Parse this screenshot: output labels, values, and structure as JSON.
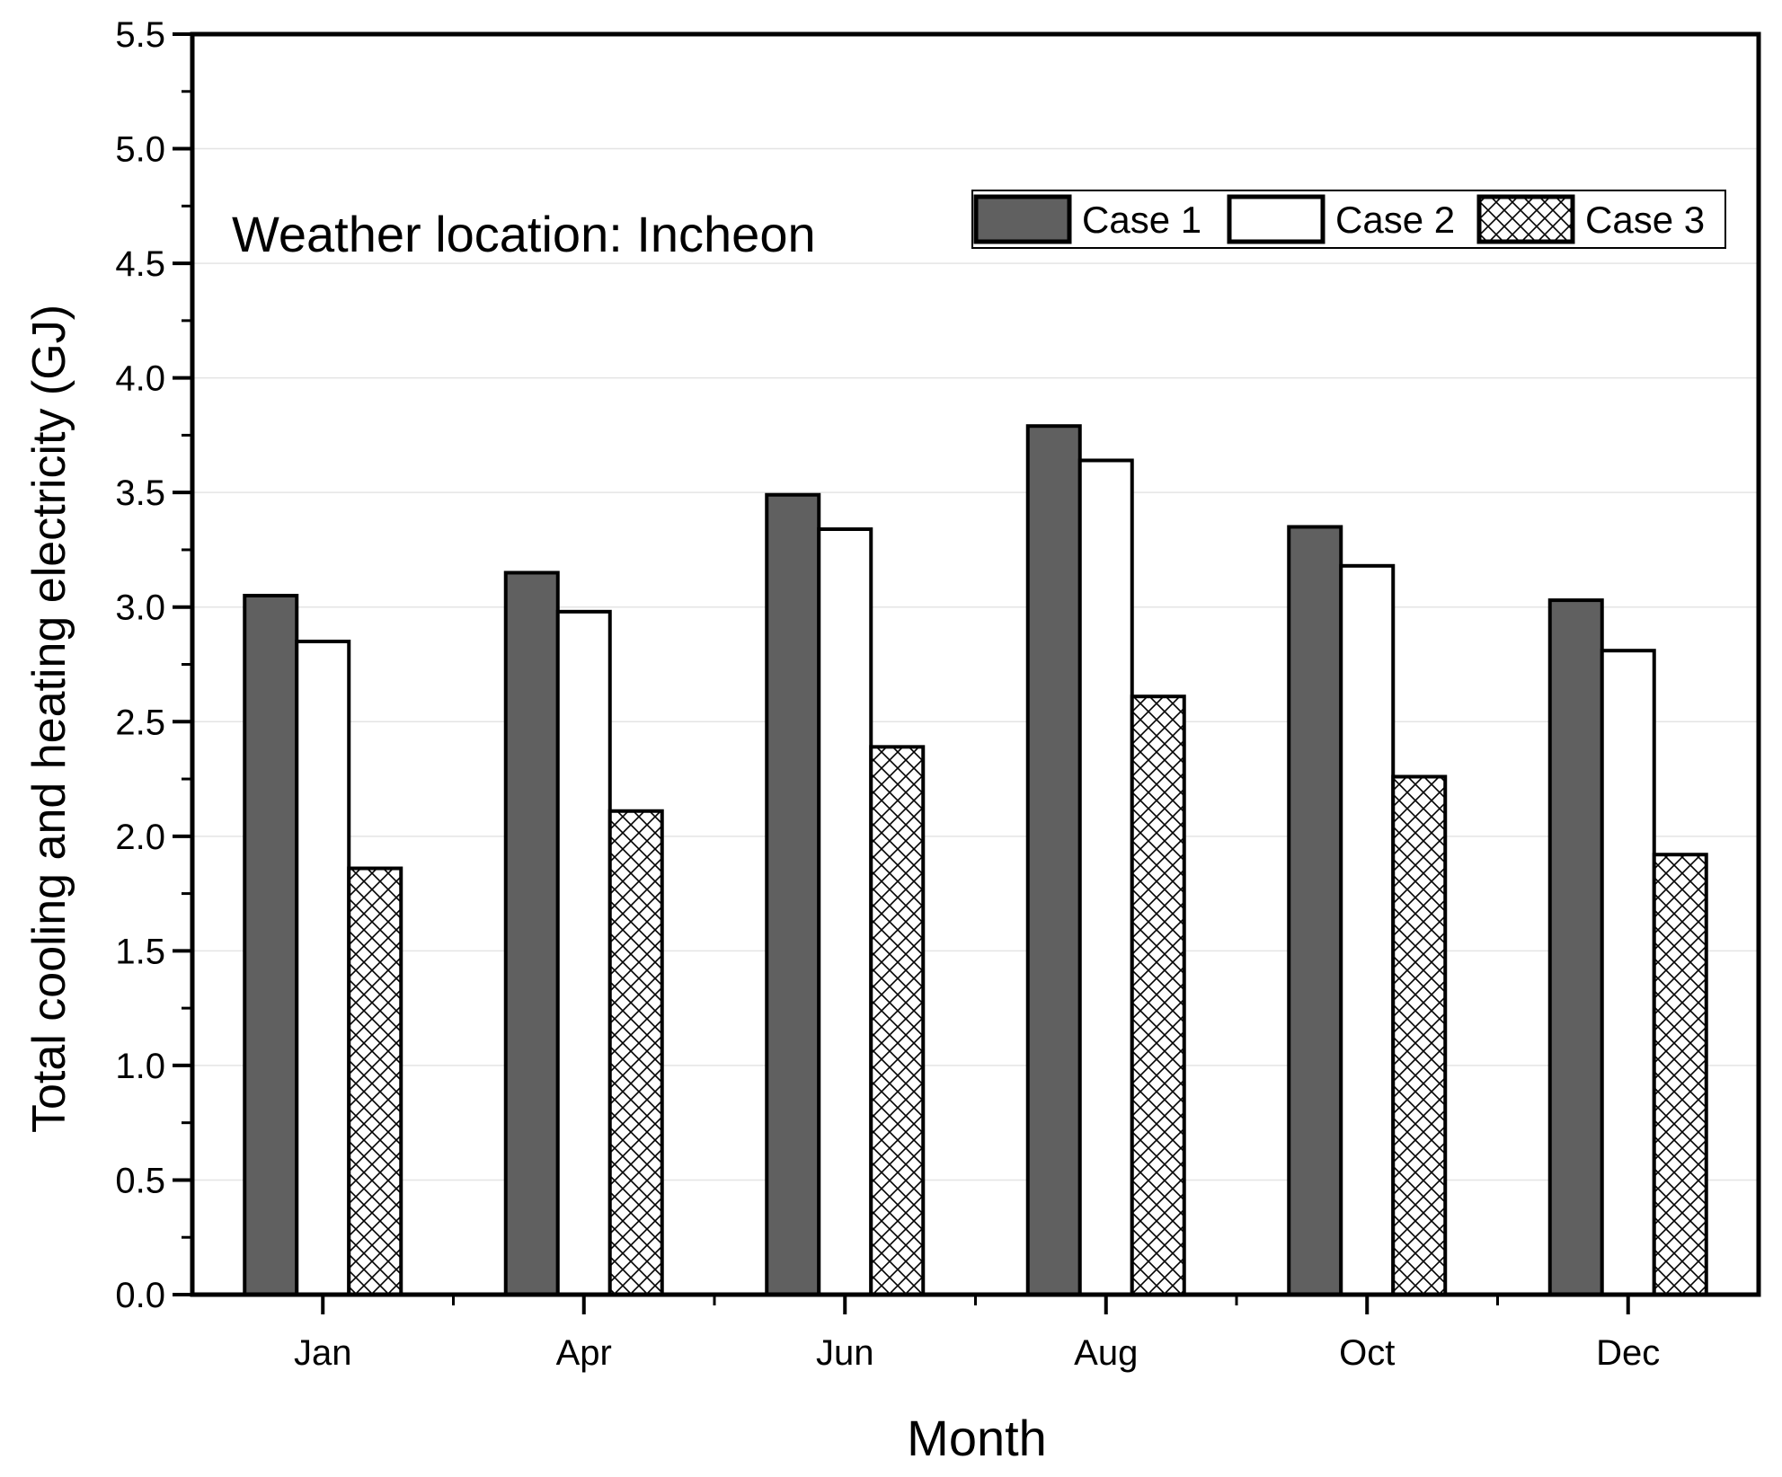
{
  "chart_data": {
    "type": "bar",
    "title": "",
    "xlabel": "Month",
    "ylabel": "Total cooling and heating electricity (GJ)",
    "annotation": "Weather location: Incheon",
    "categories": [
      "Jan",
      "Apr",
      "Jun",
      "Aug",
      "Oct",
      "Dec"
    ],
    "series": [
      {
        "name": "Case 1",
        "values": [
          3.05,
          3.15,
          3.49,
          3.79,
          3.35,
          3.03
        ],
        "fill": "#606060",
        "pattern": "solid"
      },
      {
        "name": "Case 2",
        "values": [
          2.85,
          2.98,
          3.34,
          3.64,
          3.18,
          2.81
        ],
        "fill": "#ffffff",
        "pattern": "solid"
      },
      {
        "name": "Case 3",
        "values": [
          1.86,
          2.11,
          2.39,
          2.61,
          2.26,
          1.92
        ],
        "fill": "#ffffff",
        "pattern": "crosshatch"
      }
    ],
    "ylim": [
      0,
      5.5
    ],
    "yticks": [
      "0.0",
      "0.5",
      "1.0",
      "1.5",
      "2.0",
      "2.5",
      "3.0",
      "3.5",
      "4.0",
      "4.5",
      "5.0",
      "5.5"
    ],
    "grid": true,
    "legend_position": "top-right"
  }
}
